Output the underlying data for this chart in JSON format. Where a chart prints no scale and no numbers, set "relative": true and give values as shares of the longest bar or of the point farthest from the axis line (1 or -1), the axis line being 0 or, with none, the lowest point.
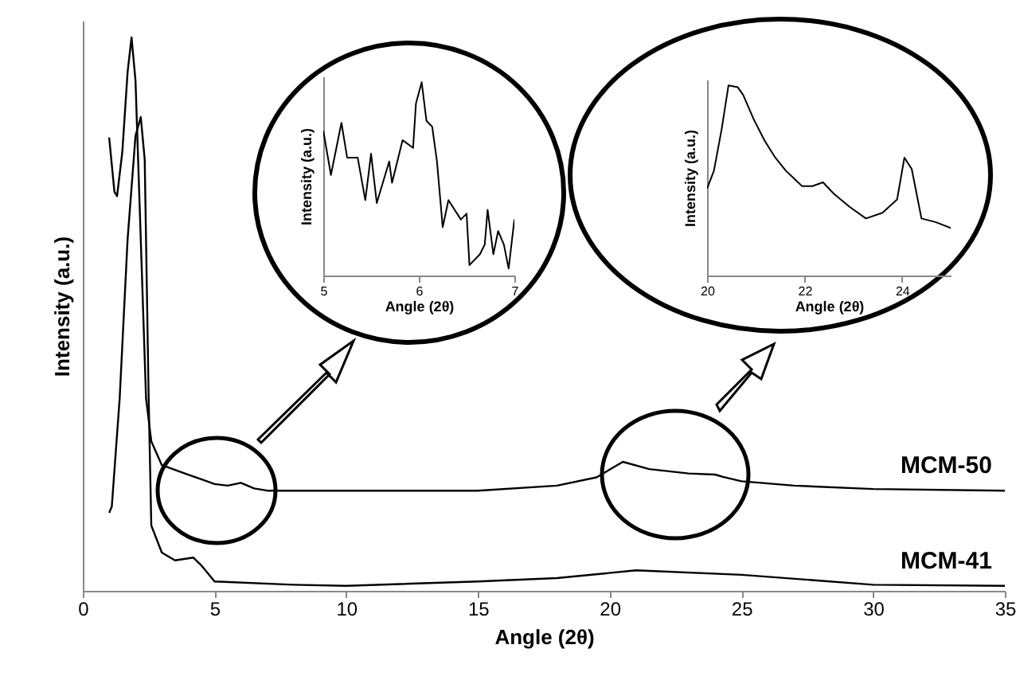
{
  "chart_data": [
    {
      "type": "line",
      "xlabel": "Angle (2θ)",
      "ylabel": "Intensity (a.u.)",
      "xlim": [
        0,
        35
      ],
      "xticks": [
        0,
        5,
        10,
        15,
        20,
        25,
        30,
        35
      ],
      "relative": true,
      "legend": false,
      "series": [
        {
          "name": "MCM-50",
          "color": "#000000",
          "x": [
            1.0,
            1.2,
            1.3,
            1.5,
            1.7,
            1.85,
            2.0,
            2.2,
            2.4,
            2.6,
            3,
            4,
            5,
            5.5,
            6,
            6.5,
            7,
            10,
            15,
            18,
            19.5,
            20.5,
            21.5,
            23,
            24,
            24.3,
            25,
            27,
            30,
            35
          ],
          "values": [
            0.819,
            0.721,
            0.713,
            0.793,
            0.937,
            1.0,
            0.922,
            0.635,
            0.348,
            0.27,
            0.227,
            0.21,
            0.193,
            0.19,
            0.195,
            0.185,
            0.181,
            0.181,
            0.181,
            0.19,
            0.205,
            0.233,
            0.22,
            0.212,
            0.21,
            0.206,
            0.198,
            0.19,
            0.184,
            0.181
          ]
        },
        {
          "name": "MCM-41",
          "color": "#000000",
          "x": [
            1.0,
            1.1,
            1.4,
            1.7,
            2.0,
            2.2,
            2.35,
            2.5,
            2.6,
            3,
            3.5,
            4.2,
            4.5,
            5,
            8,
            10,
            15,
            18,
            21,
            25,
            30,
            35
          ],
          "values": [
            0.141,
            0.152,
            0.348,
            0.635,
            0.822,
            0.856,
            0.779,
            0.348,
            0.118,
            0.069,
            0.055,
            0.06,
            0.046,
            0.017,
            0.011,
            0.009,
            0.017,
            0.023,
            0.037,
            0.029,
            0.011,
            0.009
          ]
        }
      ]
    },
    {
      "type": "line",
      "xlabel": "Angle (2θ)",
      "ylabel": "Intensity (a.u.)",
      "xlim": [
        5,
        7
      ],
      "xticks": [
        5,
        6,
        7
      ],
      "relative": true,
      "series": [
        {
          "color": "#000000",
          "x": [
            5.0,
            5.08,
            5.19,
            5.25,
            5.36,
            5.44,
            5.5,
            5.56,
            5.69,
            5.72,
            5.83,
            5.94,
            5.97,
            6.03,
            6.08,
            6.14,
            6.19,
            6.25,
            6.31,
            6.44,
            6.5,
            6.53,
            6.64,
            6.69,
            6.72,
            6.78,
            6.83,
            6.89,
            6.94,
            7.0
          ],
          "values": [
            0.75,
            0.52,
            0.79,
            0.61,
            0.61,
            0.39,
            0.63,
            0.375,
            0.59,
            0.48,
            0.7,
            0.66,
            0.89,
            1.0,
            0.8,
            0.77,
            0.59,
            0.25,
            0.39,
            0.29,
            0.32,
            0.054,
            0.11,
            0.16,
            0.34,
            0.11,
            0.23,
            0.16,
            0.036,
            0.29
          ]
        }
      ]
    },
    {
      "type": "line",
      "xlabel": "Angle (2θ)",
      "ylabel": "Intensity (a.u.)",
      "xlim": [
        20,
        25
      ],
      "xticks": [
        20,
        22,
        24
      ],
      "relative": true,
      "series": [
        {
          "color": "#000000",
          "x": [
            20.0,
            20.14,
            20.3,
            20.44,
            20.63,
            20.74,
            20.96,
            21.18,
            21.4,
            21.62,
            21.95,
            22.16,
            22.38,
            22.6,
            22.93,
            23.26,
            23.6,
            23.9,
            24.05,
            24.2,
            24.4,
            24.7,
            25.0
          ],
          "values": [
            0.457,
            0.55,
            0.77,
            1.0,
            0.99,
            0.95,
            0.82,
            0.71,
            0.62,
            0.55,
            0.47,
            0.47,
            0.49,
            0.43,
            0.36,
            0.3,
            0.33,
            0.4,
            0.62,
            0.56,
            0.3,
            0.28,
            0.25
          ]
        }
      ]
    }
  ]
}
